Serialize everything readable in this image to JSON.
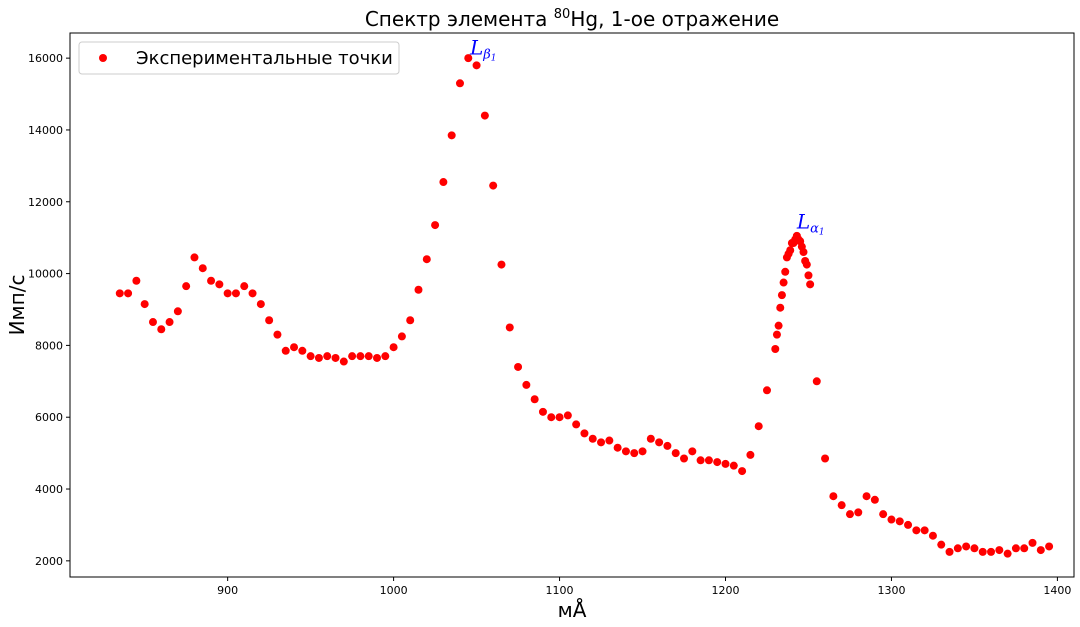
{
  "chart_data": {
    "type": "scatter",
    "title": "Спектр элемента ⁸⁰Hg, 1-ое отражение",
    "title_parts": {
      "prefix": "Спектр элемента ",
      "superscript": "80",
      "suffix": "Hg, 1-ое отражение"
    },
    "xlabel": "мÅ",
    "ylabel": "Имп/с",
    "xlim": [
      805,
      1410
    ],
    "ylim": [
      1550,
      16700
    ],
    "xticks": [
      900,
      1000,
      1100,
      1200,
      1300,
      1400
    ],
    "yticks": [
      2000,
      4000,
      6000,
      8000,
      10000,
      12000,
      14000,
      16000
    ],
    "grid": false,
    "legend_position": "top-left",
    "marker_color": "#ff0000",
    "annotation_color": "#0000ff",
    "series": [
      {
        "name": "Экспериментальные точки",
        "points": [
          [
            835,
            9450
          ],
          [
            840,
            9450
          ],
          [
            845,
            9800
          ],
          [
            850,
            9150
          ],
          [
            855,
            8650
          ],
          [
            860,
            8450
          ],
          [
            865,
            8650
          ],
          [
            870,
            8950
          ],
          [
            875,
            9650
          ],
          [
            880,
            10450
          ],
          [
            885,
            10150
          ],
          [
            890,
            9800
          ],
          [
            895,
            9700
          ],
          [
            900,
            9450
          ],
          [
            905,
            9450
          ],
          [
            910,
            9650
          ],
          [
            915,
            9450
          ],
          [
            920,
            9150
          ],
          [
            925,
            8700
          ],
          [
            930,
            8300
          ],
          [
            935,
            7850
          ],
          [
            940,
            7950
          ],
          [
            945,
            7850
          ],
          [
            950,
            7700
          ],
          [
            955,
            7650
          ],
          [
            960,
            7700
          ],
          [
            965,
            7650
          ],
          [
            970,
            7550
          ],
          [
            975,
            7700
          ],
          [
            980,
            7700
          ],
          [
            985,
            7700
          ],
          [
            990,
            7650
          ],
          [
            995,
            7700
          ],
          [
            1000,
            7950
          ],
          [
            1005,
            8250
          ],
          [
            1010,
            8700
          ],
          [
            1015,
            9550
          ],
          [
            1020,
            10400
          ],
          [
            1025,
            11350
          ],
          [
            1030,
            12550
          ],
          [
            1035,
            13850
          ],
          [
            1040,
            15300
          ],
          [
            1045,
            16000
          ],
          [
            1050,
            15800
          ],
          [
            1055,
            14400
          ],
          [
            1060,
            12450
          ],
          [
            1065,
            10250
          ],
          [
            1070,
            8500
          ],
          [
            1075,
            7400
          ],
          [
            1080,
            6900
          ],
          [
            1085,
            6500
          ],
          [
            1090,
            6150
          ],
          [
            1095,
            6000
          ],
          [
            1100,
            6000
          ],
          [
            1105,
            6050
          ],
          [
            1110,
            5800
          ],
          [
            1115,
            5550
          ],
          [
            1120,
            5400
          ],
          [
            1125,
            5300
          ],
          [
            1130,
            5350
          ],
          [
            1135,
            5150
          ],
          [
            1140,
            5050
          ],
          [
            1145,
            5000
          ],
          [
            1150,
            5050
          ],
          [
            1155,
            5400
          ],
          [
            1160,
            5300
          ],
          [
            1165,
            5200
          ],
          [
            1170,
            5000
          ],
          [
            1175,
            4850
          ],
          [
            1180,
            5050
          ],
          [
            1185,
            4800
          ],
          [
            1190,
            4800
          ],
          [
            1195,
            4750
          ],
          [
            1200,
            4700
          ],
          [
            1205,
            4650
          ],
          [
            1210,
            4500
          ],
          [
            1215,
            4950
          ],
          [
            1220,
            5750
          ],
          [
            1225,
            6750
          ],
          [
            1230,
            7900
          ],
          [
            1231,
            8300
          ],
          [
            1232,
            8550
          ],
          [
            1233,
            9050
          ],
          [
            1234,
            9400
          ],
          [
            1235,
            9750
          ],
          [
            1236,
            10050
          ],
          [
            1237,
            10450
          ],
          [
            1238,
            10550
          ],
          [
            1239,
            10650
          ],
          [
            1240,
            10850
          ],
          [
            1241,
            10850
          ],
          [
            1242,
            10950
          ],
          [
            1243,
            11050
          ],
          [
            1244,
            10950
          ],
          [
            1245,
            10900
          ],
          [
            1246,
            10750
          ],
          [
            1247,
            10600
          ],
          [
            1248,
            10350
          ],
          [
            1249,
            10250
          ],
          [
            1250,
            9950
          ],
          [
            1251,
            9700
          ],
          [
            1255,
            7000
          ],
          [
            1260,
            4850
          ],
          [
            1265,
            3800
          ],
          [
            1270,
            3550
          ],
          [
            1275,
            3300
          ],
          [
            1280,
            3350
          ],
          [
            1285,
            3800
          ],
          [
            1290,
            3700
          ],
          [
            1295,
            3300
          ],
          [
            1300,
            3150
          ],
          [
            1305,
            3100
          ],
          [
            1310,
            3000
          ],
          [
            1315,
            2850
          ],
          [
            1320,
            2850
          ],
          [
            1325,
            2700
          ],
          [
            1330,
            2450
          ],
          [
            1335,
            2250
          ],
          [
            1340,
            2350
          ],
          [
            1345,
            2400
          ],
          [
            1350,
            2350
          ],
          [
            1355,
            2250
          ],
          [
            1360,
            2250
          ],
          [
            1365,
            2300
          ],
          [
            1370,
            2200
          ],
          [
            1375,
            2350
          ],
          [
            1380,
            2350
          ],
          [
            1385,
            2500
          ],
          [
            1390,
            2300
          ],
          [
            1395,
            2400
          ]
        ]
      }
    ],
    "annotations": [
      {
        "text": "L",
        "subscript_greek": "β",
        "subscript_digit": "1",
        "x": 1046,
        "y": 16100
      },
      {
        "text": "L",
        "subscript_greek": "α",
        "subscript_digit": "1",
        "x": 1243,
        "y": 11250
      }
    ]
  }
}
